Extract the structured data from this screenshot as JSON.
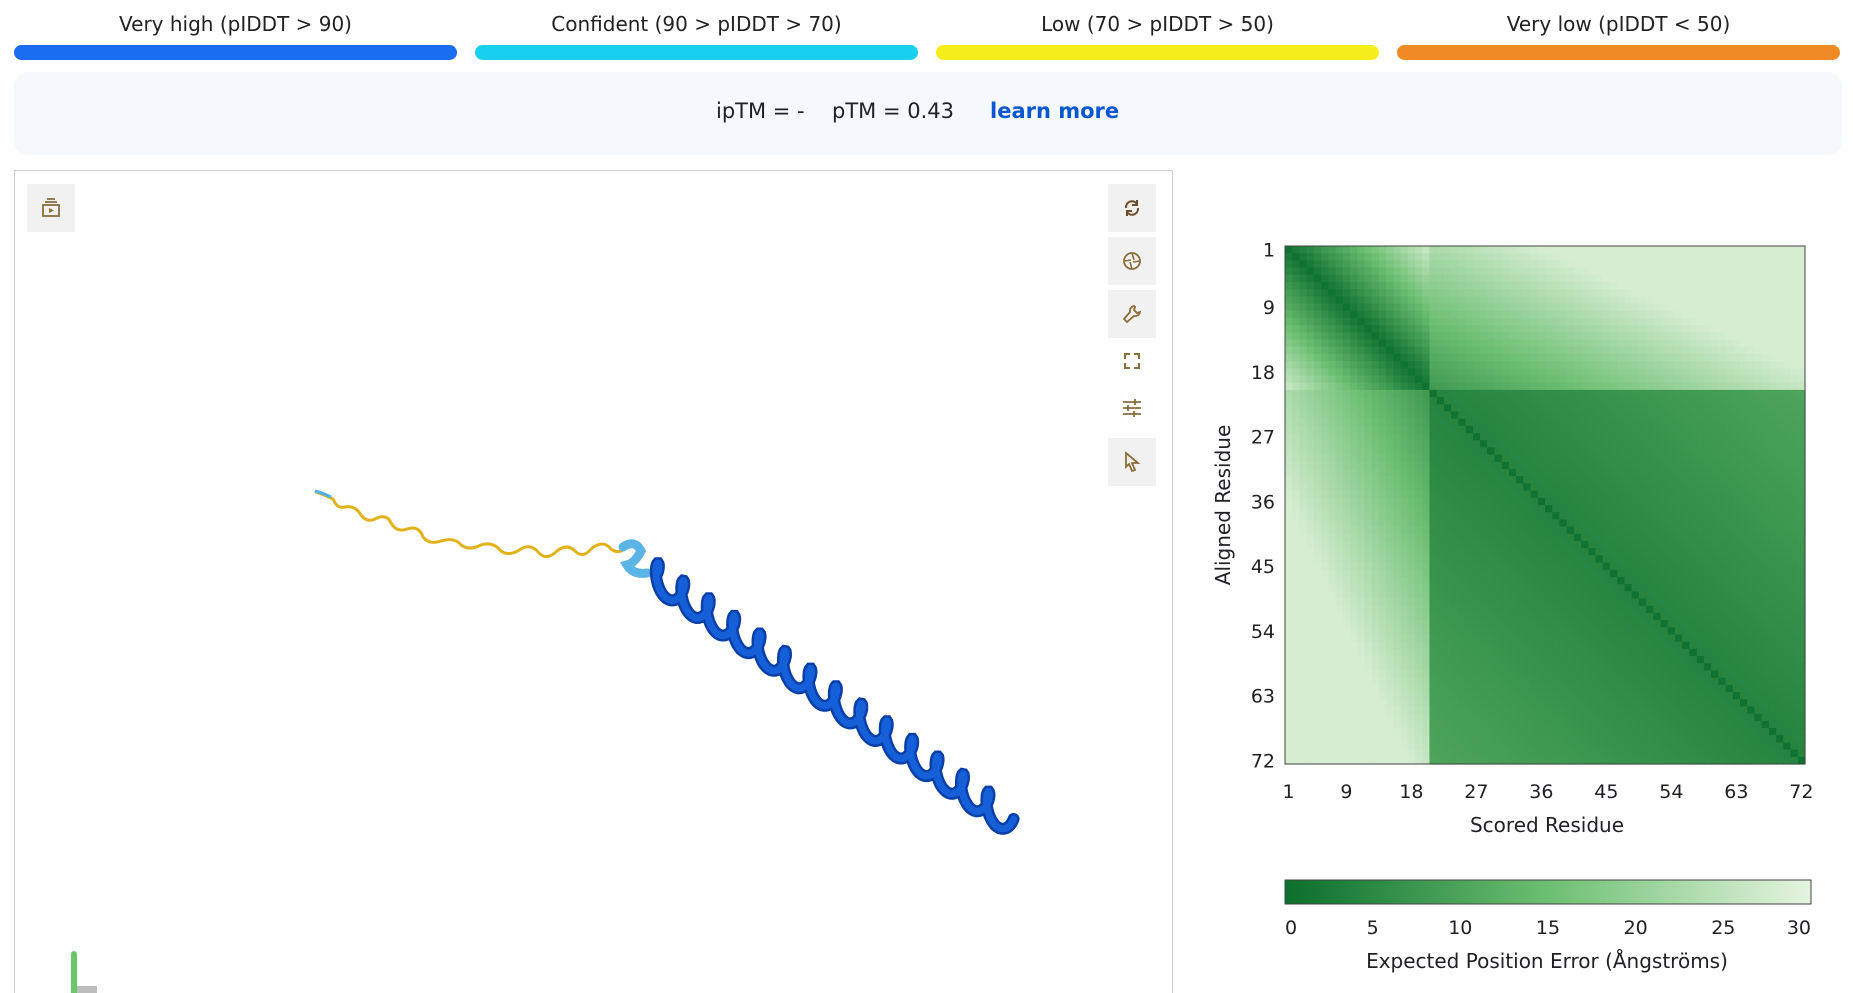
{
  "legend": [
    {
      "label": "Very high (pIDDT > 90)",
      "color": "#1a6cf0"
    },
    {
      "label": "Confident (90 > pIDDT > 70)",
      "color": "#17d0f0"
    },
    {
      "label": "Low (70 > pIDDT > 50)",
      "color": "#f5ee1a"
    },
    {
      "label": "Very low (pIDDT < 50)",
      "color": "#f08a24"
    }
  ],
  "scores": {
    "iptm": "ipTM = -",
    "ptm": "pTM = 0.43",
    "learn_more": "learn more"
  },
  "viewer_toolbar": {
    "left": [
      {
        "name": "animation-icon"
      }
    ],
    "right": [
      {
        "name": "reset-view-icon"
      },
      {
        "name": "screenshot-icon"
      },
      {
        "name": "settings-wrench-icon"
      },
      {
        "name": "fullscreen-icon"
      },
      {
        "name": "controls-sliders-icon"
      },
      {
        "name": "selection-pointer-icon"
      }
    ]
  },
  "chart_data": {
    "type": "heatmap",
    "title": "",
    "xlabel": "Scored Residue",
    "ylabel": "Aligned Residue",
    "xticks": [
      "1",
      "9",
      "18",
      "27",
      "36",
      "45",
      "54",
      "63",
      "72"
    ],
    "yticks": [
      "1",
      "9",
      "18",
      "27",
      "36",
      "45",
      "54",
      "63",
      "72"
    ],
    "n_residues": 72,
    "colorbar": {
      "label": "Expected Position Error (Ångströms)",
      "ticks": [
        "0",
        "5",
        "10",
        "15",
        "20",
        "25",
        "30"
      ],
      "range": [
        0,
        30
      ],
      "color_low": "#0b6e2c",
      "color_high": "#e6f4e0"
    },
    "description": {
      "diagonal_error": 1,
      "disordered_region": [
        1,
        20
      ],
      "ordered_region": [
        21,
        72
      ],
      "ordered_block_error": 4,
      "offblock_error": 28
    }
  }
}
